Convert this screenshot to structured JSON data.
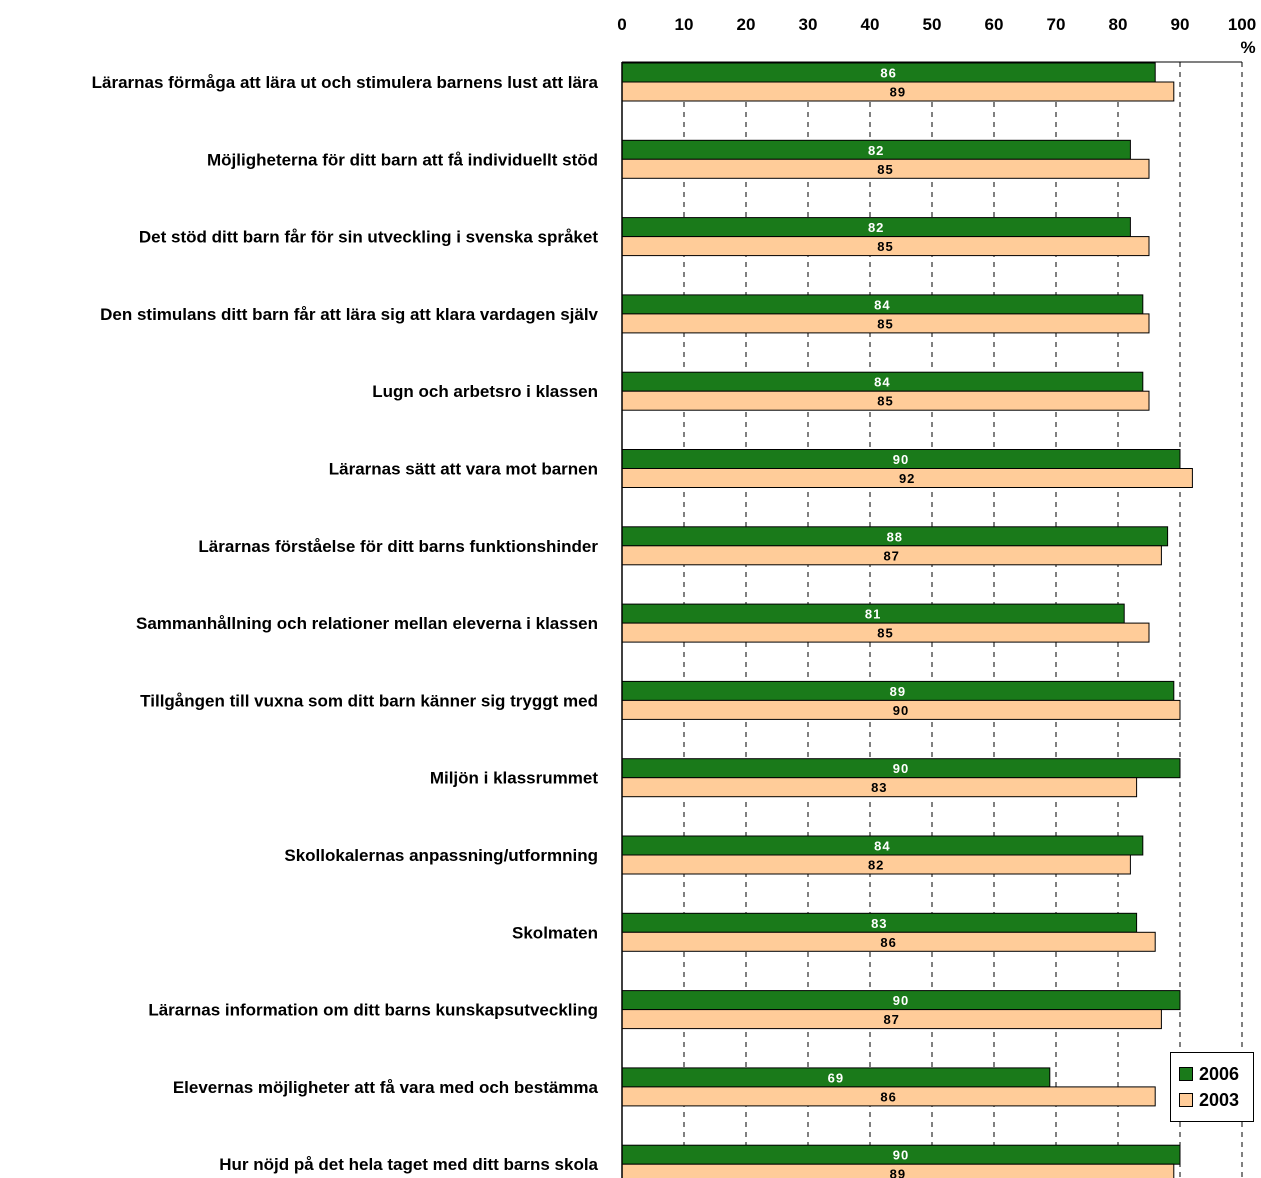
{
  "chart_data": {
    "type": "bar",
    "orientation": "horizontal",
    "unit": "%",
    "xlim": [
      0,
      100
    ],
    "ticks": [
      0,
      10,
      20,
      30,
      40,
      50,
      60,
      70,
      80,
      90,
      100
    ],
    "grid": true,
    "legend_position": "bottom-right",
    "categories": [
      "Lärarnas förmåga att lära ut och stimulera barnens lust att lära",
      "Möjligheterna för ditt barn att få individuellt stöd",
      "Det stöd ditt barn får för sin utveckling i svenska språket",
      "Den stimulans ditt barn får att lära sig att klara vardagen själv",
      "Lugn och arbetsro i klassen",
      "Lärarnas sätt att vara mot barnen",
      "Lärarnas förståelse för ditt barns funktionshinder",
      "Sammanhållning och relationer mellan eleverna i klassen",
      "Tillgången till vuxna som ditt barn känner sig tryggt med",
      "Miljön i klassrummet",
      "Skollokalernas anpassning/utformning",
      "Skolmaten",
      "Lärarnas information om ditt barns kunskapsutveckling",
      "Elevernas möjligheter att få vara med och bestämma",
      "Hur nöjd på det hela taget med ditt barns skola"
    ],
    "series": [
      {
        "name": "2006",
        "color": "#1a7a1a",
        "label_color": "#ffffff",
        "values": [
          86,
          82,
          82,
          84,
          84,
          90,
          88,
          81,
          89,
          90,
          84,
          83,
          90,
          69,
          90
        ]
      },
      {
        "name": "2003",
        "color": "#ffcc99",
        "label_color": "#000000",
        "values": [
          89,
          85,
          85,
          85,
          85,
          92,
          87,
          85,
          90,
          83,
          82,
          86,
          87,
          86,
          89
        ]
      }
    ]
  }
}
